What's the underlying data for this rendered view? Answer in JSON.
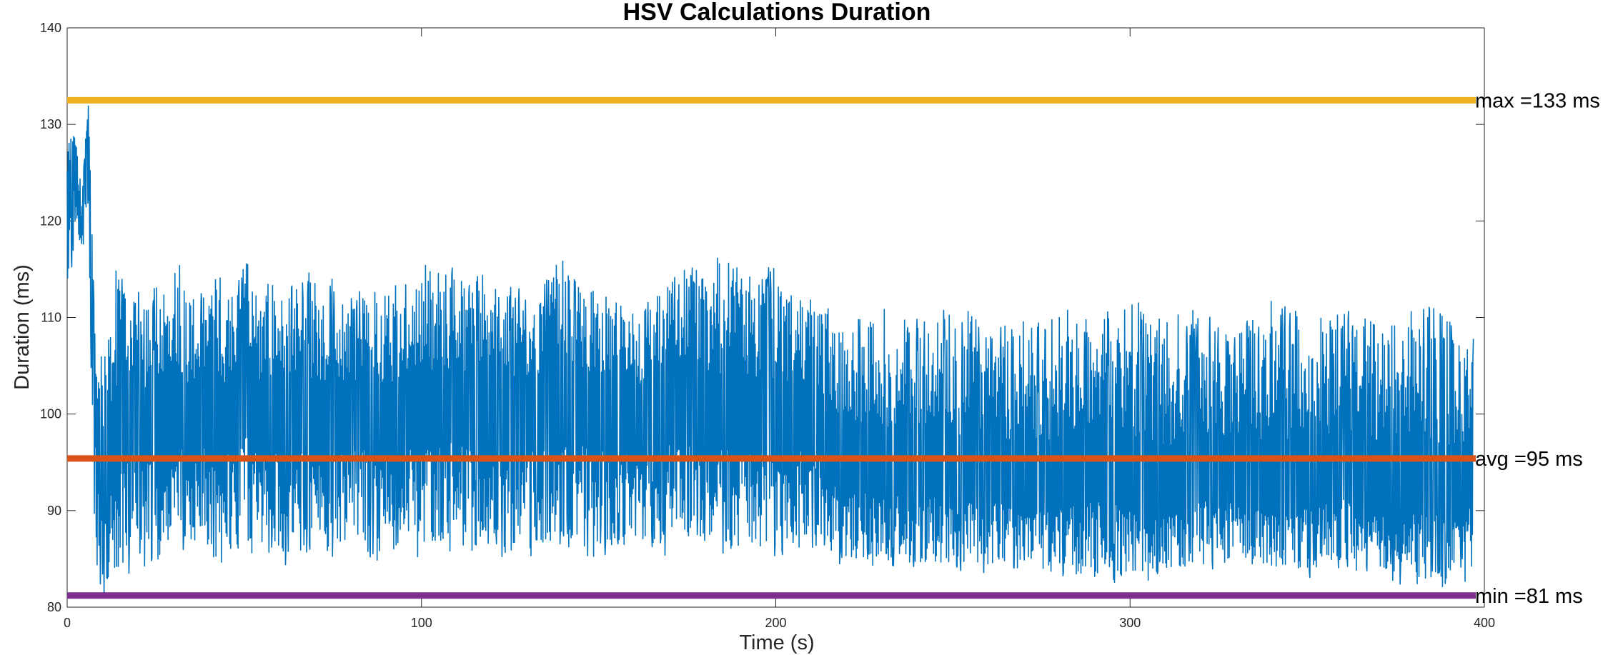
{
  "chart_data": {
    "type": "line",
    "title": "HSV Calculations Duration",
    "xlabel": "Time (s)",
    "ylabel": "Duration (ms)",
    "xlim": [
      0,
      400
    ],
    "ylim": [
      80,
      140
    ],
    "xticks": [
      0,
      100,
      200,
      300,
      400
    ],
    "yticks": [
      80,
      90,
      100,
      110,
      120,
      130,
      140
    ],
    "grid": false,
    "colors": {
      "series": "#0072BD",
      "max": "#EDB120",
      "avg": "#D95319",
      "min": "#7E2F8E",
      "axes": "#262626"
    },
    "reference_lines": [
      {
        "key": "max",
        "y": 132.5,
        "label": "max =133 ms"
      },
      {
        "key": "avg",
        "y": 95.4,
        "label": "avg =95 ms"
      },
      {
        "key": "min",
        "y": 81.2,
        "label": "min =81 ms"
      }
    ],
    "series": [
      {
        "x": [
          0,
          2,
          4,
          6,
          8,
          10,
          14,
          18,
          22,
          26,
          30,
          34,
          38,
          42,
          46,
          50,
          55,
          60,
          65,
          70,
          75,
          80,
          85,
          90,
          95,
          100,
          110,
          120,
          130,
          140,
          150,
          160,
          170,
          180,
          190,
          200,
          210,
          220,
          230,
          240,
          250,
          260,
          270,
          280,
          290,
          300,
          310,
          320,
          330,
          340,
          350,
          360,
          370,
          380,
          390,
          397
        ],
        "values": [
          122,
          128,
          118,
          132,
          100,
          95,
          98,
          101,
          99,
          100,
          102,
          99,
          101,
          98,
          100,
          102,
          99,
          101,
          100,
          98,
          99,
          100,
          101,
          99,
          100,
          100,
          101,
          99,
          100,
          102,
          100,
          99,
          101,
          100,
          100,
          99,
          100,
          95,
          94,
          95,
          93,
          94,
          92,
          93,
          94,
          93,
          92,
          94,
          93,
          92,
          93,
          94,
          92,
          93,
          92,
          93
        ],
        "min_band": [
          113,
          115,
          116,
          118,
          82,
          81,
          82,
          83,
          84,
          85,
          85,
          86,
          85,
          84,
          85,
          86,
          85,
          84,
          85,
          86,
          85,
          85,
          84,
          85,
          86,
          85,
          86,
          85,
          85,
          86,
          85,
          86,
          85,
          86,
          85,
          85,
          86,
          84,
          84,
          83,
          84,
          83,
          84,
          82,
          83,
          82,
          83,
          83,
          84,
          83,
          83,
          84,
          83,
          82,
          82,
          83
        ],
        "max_band": [
          129,
          130,
          124,
          132,
          107,
          109,
          116,
          114,
          112,
          114,
          117,
          115,
          113,
          118,
          112,
          116,
          114,
          113,
          115,
          116,
          114,
          112,
          114,
          115,
          113,
          117,
          116,
          114,
          113,
          116,
          114,
          112,
          115,
          116,
          117,
          115,
          113,
          110,
          111,
          110,
          112,
          109,
          110,
          111,
          110,
          112,
          110,
          111,
          109,
          112,
          110,
          111,
          110,
          113,
          110,
          108
        ]
      }
    ]
  }
}
